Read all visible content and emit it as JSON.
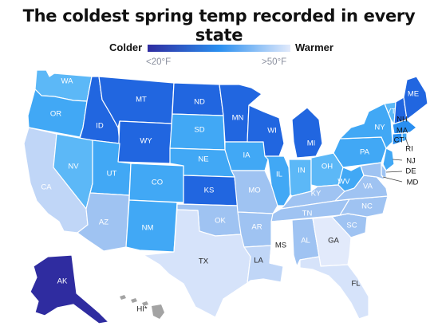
{
  "title": "The coldest spring temp recorded in every state",
  "legend": {
    "low_label": "Colder",
    "high_label": "Warmer",
    "low_tick": "<20°F",
    "high_tick": ">50°F",
    "color_cold": "#2f2ca0",
    "color_mid": "#2a8ff0",
    "color_warm": "#e2eafb"
  },
  "states": {
    "WA": "WA",
    "OR": "OR",
    "CA": "CA",
    "ID": "ID",
    "NV": "NV",
    "MT": "MT",
    "WY": "WY",
    "UT": "UT",
    "AZ": "AZ",
    "CO": "CO",
    "NM": "NM",
    "ND": "ND",
    "SD": "SD",
    "NE": "NE",
    "KS": "KS",
    "OK": "OK",
    "TX": "TX",
    "MN": "MN",
    "IA": "IA",
    "MO": "MO",
    "AR": "AR",
    "LA": "LA",
    "WI": "WI",
    "IL": "IL",
    "MI": "MI",
    "IN": "IN",
    "OH": "OH",
    "KY": "KY",
    "TN": "TN",
    "MS": "MS",
    "AL": "AL",
    "GA": "GA",
    "FL": "FL",
    "SC": "SC",
    "NC": "NC",
    "VA": "VA",
    "WV": "WV",
    "PA": "PA",
    "NY": "NY",
    "VT": "VT",
    "NH": "NH",
    "ME": "ME",
    "MA": "MA",
    "CT": "CT",
    "RI": "RI",
    "NJ": "NJ",
    "DE": "DE",
    "MD": "MD",
    "AK": "AK",
    "HI": "HI*"
  },
  "colors": {
    "c1": "#2f2ca0",
    "c2": "#2166e0",
    "c3": "#2a8ff0",
    "c4": "#41a8f5",
    "c5": "#5cb8f7",
    "c6": "#9fc3f2",
    "c7": "#c0d6f7",
    "c8": "#d6e3fa",
    "c9": "#e2eafb",
    "hi": "#a3a3a3"
  }
}
